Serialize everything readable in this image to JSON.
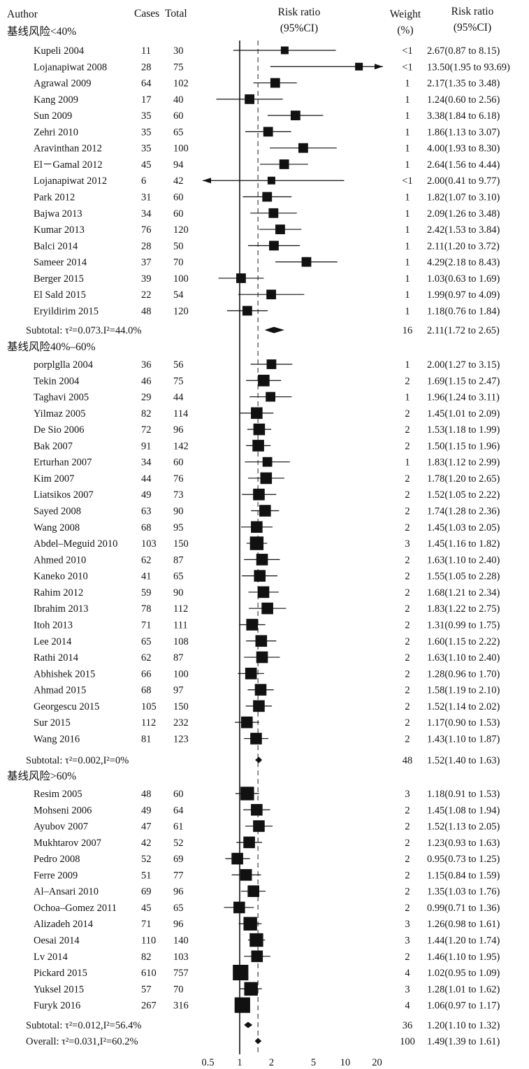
{
  "header": {
    "author": "Author",
    "cases": "Cases",
    "total": "Total",
    "rr_line1": "Risk ratio",
    "rr_line2": "(95%CI)",
    "weight_line1": "Weight",
    "weight_line2": "(%)",
    "rr2_line1": "Risk ratio",
    "rr2_line2": "(95%CI)"
  },
  "chart_data": {
    "type": "forest",
    "scale": "log",
    "x_ticks": [
      "0.5",
      "1",
      "2",
      "5",
      "10",
      "20"
    ],
    "x_tick_values": [
      0.5,
      1,
      2,
      5,
      10,
      20
    ],
    "null_line": 1,
    "overall_reference": 1.49,
    "groups": [
      {
        "label": "基线风险<40%",
        "studies": [
          {
            "author": "Kupeli 2004",
            "cases": "11",
            "total": "30",
            "weight": "<1",
            "rr_text": "2.67(0.87 to 8.15)",
            "rr": 2.67,
            "lo": 0.87,
            "hi": 8.15
          },
          {
            "author": "Lojanapiwat 2008",
            "cases": "28",
            "total": "75",
            "weight": "<1",
            "rr_text": "13.50(1.95 to 93.69)",
            "rr": 13.5,
            "lo": 1.95,
            "hi": 93.69
          },
          {
            "author": "Agrawal 2009",
            "cases": "64",
            "total": "102",
            "weight": "1",
            "rr_text": "2.17(1.35 to 3.48)",
            "rr": 2.17,
            "lo": 1.35,
            "hi": 3.48
          },
          {
            "author": "Kang 2009",
            "cases": "17",
            "total": "40",
            "weight": "1",
            "rr_text": "1.24(0.60 to 2.56)",
            "rr": 1.24,
            "lo": 0.6,
            "hi": 2.56
          },
          {
            "author": "Sun 2009",
            "cases": "35",
            "total": "60",
            "weight": "1",
            "rr_text": "3.38(1.84 to 6.18)",
            "rr": 3.38,
            "lo": 1.84,
            "hi": 6.18
          },
          {
            "author": "Zehri 2010",
            "cases": "35",
            "total": "65",
            "weight": "1",
            "rr_text": "1.86(1.13 to 3.07)",
            "rr": 1.86,
            "lo": 1.13,
            "hi": 3.07
          },
          {
            "author": "Aravinthan 2012",
            "cases": "35",
            "total": "100",
            "weight": "1",
            "rr_text": "4.00(1.93 to 8.30)",
            "rr": 4.0,
            "lo": 1.93,
            "hi": 8.3
          },
          {
            "author": "El－Gamal 2012",
            "cases": "45",
            "total": "94",
            "weight": "1",
            "rr_text": "2.64(1.56 to 4.44)",
            "rr": 2.64,
            "lo": 1.56,
            "hi": 4.44
          },
          {
            "author": "Lojanapiwat 2012",
            "cases": "6",
            "total": "42",
            "weight": "<1",
            "rr_text": "2.00(0.41 to 9.77)",
            "rr": 2.0,
            "lo": 0.41,
            "hi": 9.77
          },
          {
            "author": "Park 2012",
            "cases": "31",
            "total": "60",
            "weight": "1",
            "rr_text": "1.82(1.07 to 3.10)",
            "rr": 1.82,
            "lo": 1.07,
            "hi": 3.1
          },
          {
            "author": "Bajwa 2013",
            "cases": "34",
            "total": "60",
            "weight": "1",
            "rr_text": "2.09(1.26 to 3.48)",
            "rr": 2.09,
            "lo": 1.26,
            "hi": 3.48
          },
          {
            "author": "Kumar 2013",
            "cases": "76",
            "total": "120",
            "weight": "1",
            "rr_text": "2.42(1.53 to 3.84)",
            "rr": 2.42,
            "lo": 1.53,
            "hi": 3.84
          },
          {
            "author": "Balci 2014",
            "cases": "28",
            "total": "50",
            "weight": "1",
            "rr_text": "2.11(1.20 to 3.72)",
            "rr": 2.11,
            "lo": 1.2,
            "hi": 3.72
          },
          {
            "author": "Sameer 2014",
            "cases": "37",
            "total": "70",
            "weight": "1",
            "rr_text": "4.29(2.18 to 8.43)",
            "rr": 4.29,
            "lo": 2.18,
            "hi": 8.43
          },
          {
            "author": "Berger 2015",
            "cases": "39",
            "total": "100",
            "weight": "1",
            "rr_text": "1.03(0.63 to 1.69)",
            "rr": 1.03,
            "lo": 0.63,
            "hi": 1.69
          },
          {
            "author": "El Sald 2015",
            "cases": "22",
            "total": "54",
            "weight": "1",
            "rr_text": "1.99(0.97 to 4.09)",
            "rr": 1.99,
            "lo": 0.97,
            "hi": 4.09
          },
          {
            "author": "Eryildirim 2015",
            "cases": "48",
            "total": "120",
            "weight": "1",
            "rr_text": "1.18(0.76 to 1.84)",
            "rr": 1.18,
            "lo": 0.76,
            "hi": 1.84
          }
        ],
        "subtotal": {
          "label": "Subtotal: τ²=0.073.I²=44.0%",
          "weight": "16",
          "rr_text": "2.11(1.72 to 2.65)",
          "rr": 2.11,
          "lo": 1.72,
          "hi": 2.65
        }
      },
      {
        "label": "基线风险40%–60%",
        "studies": [
          {
            "author": "porplglla 2004",
            "cases": "36",
            "total": "56",
            "weight": "1",
            "rr_text": "2.00(1.27 to 3.15)",
            "rr": 2.0,
            "lo": 1.27,
            "hi": 3.15
          },
          {
            "author": "Tekin 2004",
            "cases": "46",
            "total": "75",
            "weight": "2",
            "rr_text": "1.69(1.15 to 2.47)",
            "rr": 1.69,
            "lo": 1.15,
            "hi": 2.47
          },
          {
            "author": "Taghavi 2005",
            "cases": "29",
            "total": "44",
            "weight": "1",
            "rr_text": "1.96(1.24 to 3.11)",
            "rr": 1.96,
            "lo": 1.24,
            "hi": 3.11
          },
          {
            "author": "Yilmaz 2005",
            "cases": "82",
            "total": "114",
            "weight": "2",
            "rr_text": "1.45(1.01 to 2.09)",
            "rr": 1.45,
            "lo": 1.01,
            "hi": 2.09
          },
          {
            "author": "De Sio 2006",
            "cases": "72",
            "total": "96",
            "weight": "2",
            "rr_text": "1.53(1.18 to 1.99)",
            "rr": 1.53,
            "lo": 1.18,
            "hi": 1.99
          },
          {
            "author": "Bak 2007",
            "cases": "91",
            "total": "142",
            "weight": "2",
            "rr_text": "1.50(1.15 to 1.96)",
            "rr": 1.5,
            "lo": 1.15,
            "hi": 1.96
          },
          {
            "author": "Erturhan 2007",
            "cases": "34",
            "total": "60",
            "weight": "1",
            "rr_text": "1.83(1.12 to 2.99)",
            "rr": 1.83,
            "lo": 1.12,
            "hi": 2.99
          },
          {
            "author": "Kim 2007",
            "cases": "44",
            "total": "76",
            "weight": "2",
            "rr_text": "1.78(1.20 to 2.65)",
            "rr": 1.78,
            "lo": 1.2,
            "hi": 2.65
          },
          {
            "author": "Liatsikos 2007",
            "cases": "49",
            "total": "73",
            "weight": "2",
            "rr_text": "1.52(1.05 to 2.22)",
            "rr": 1.52,
            "lo": 1.05,
            "hi": 2.22
          },
          {
            "author": "Sayed 2008",
            "cases": "63",
            "total": "90",
            "weight": "2",
            "rr_text": "1.74(1.28 to 2.36)",
            "rr": 1.74,
            "lo": 1.28,
            "hi": 2.36
          },
          {
            "author": "Wang 2008",
            "cases": "68",
            "total": "95",
            "weight": "2",
            "rr_text": "1.45(1.03 to 2.05)",
            "rr": 1.45,
            "lo": 1.03,
            "hi": 2.05
          },
          {
            "author": "Abdel–Meguid 2010",
            "cases": "103",
            "total": "150",
            "weight": "3",
            "rr_text": "1.45(1.16 to 1.82)",
            "rr": 1.45,
            "lo": 1.16,
            "hi": 1.82
          },
          {
            "author": "Ahmed 2010",
            "cases": "62",
            "total": "87",
            "weight": "2",
            "rr_text": "1.63(1.10 to 2.40)",
            "rr": 1.63,
            "lo": 1.1,
            "hi": 2.4
          },
          {
            "author": "Kaneko 2010",
            "cases": "41",
            "total": "65",
            "weight": "2",
            "rr_text": "1.55(1.05 to 2.28)",
            "rr": 1.55,
            "lo": 1.05,
            "hi": 2.28
          },
          {
            "author": "Rahim 2012",
            "cases": "59",
            "total": "90",
            "weight": "2",
            "rr_text": "1.68(1.21 to 2.34)",
            "rr": 1.68,
            "lo": 1.21,
            "hi": 2.34
          },
          {
            "author": "Ibrahim 2013",
            "cases": "78",
            "total": "112",
            "weight": "2",
            "rr_text": "1.83(1.22 to 2.75)",
            "rr": 1.83,
            "lo": 1.22,
            "hi": 2.75
          },
          {
            "author": "Itoh 2013",
            "cases": "71",
            "total": "111",
            "weight": "2",
            "rr_text": "1.31(0.99 to 1.75)",
            "rr": 1.31,
            "lo": 0.99,
            "hi": 1.75
          },
          {
            "author": "Lee 2014",
            "cases": "65",
            "total": "108",
            "weight": "2",
            "rr_text": "1.60(1.15 to 2.22)",
            "rr": 1.6,
            "lo": 1.15,
            "hi": 2.22
          },
          {
            "author": "Rathi 2014",
            "cases": "62",
            "total": "87",
            "weight": "2",
            "rr_text": "1.63(1.10 to 2.40)",
            "rr": 1.63,
            "lo": 1.1,
            "hi": 2.4
          },
          {
            "author": "Abhishek 2015",
            "cases": "66",
            "total": "100",
            "weight": "2",
            "rr_text": "1.28(0.96 to 1.70)",
            "rr": 1.28,
            "lo": 0.96,
            "hi": 1.7
          },
          {
            "author": "Ahmad 2015",
            "cases": "68",
            "total": "97",
            "weight": "2",
            "rr_text": "1.58(1.19 to 2.10)",
            "rr": 1.58,
            "lo": 1.19,
            "hi": 2.1
          },
          {
            "author": "Georgescu 2015",
            "cases": "105",
            "total": "150",
            "weight": "2",
            "rr_text": "1.52(1.14 to 2.02)",
            "rr": 1.52,
            "lo": 1.14,
            "hi": 2.02
          },
          {
            "author": "Sur 2015",
            "cases": "112",
            "total": "232",
            "weight": "2",
            "rr_text": "1.17(0.90 to 1.53)",
            "rr": 1.17,
            "lo": 0.9,
            "hi": 1.53
          },
          {
            "author": "Wang 2016",
            "cases": "81",
            "total": "123",
            "weight": "2",
            "rr_text": "1.43(1.10 to 1.87)",
            "rr": 1.43,
            "lo": 1.1,
            "hi": 1.87
          }
        ],
        "subtotal": {
          "label": "Subtotal: τ²=0.002,I²=0%",
          "weight": "48",
          "rr_text": "1.52(1.40 to 1.63)",
          "rr": 1.52,
          "lo": 1.4,
          "hi": 1.63
        }
      },
      {
        "label": "基线风险>60%",
        "studies": [
          {
            "author": "Resim 2005",
            "cases": "48",
            "total": "60",
            "weight": "3",
            "rr_text": "1.18(0.91 to 1.53)",
            "rr": 1.18,
            "lo": 0.91,
            "hi": 1.53
          },
          {
            "author": "Mohseni 2006",
            "cases": "49",
            "total": "64",
            "weight": "2",
            "rr_text": "1.45(1.08 to 1.94)",
            "rr": 1.45,
            "lo": 1.08,
            "hi": 1.94
          },
          {
            "author": "Ayubov 2007",
            "cases": "47",
            "total": "61",
            "weight": "2",
            "rr_text": "1.52(1.13 to 2.05)",
            "rr": 1.52,
            "lo": 1.13,
            "hi": 2.05
          },
          {
            "author": "Mukhtarov 2007",
            "cases": "42",
            "total": "52",
            "weight": "2",
            "rr_text": "1.23(0.93 to 1.63)",
            "rr": 1.23,
            "lo": 0.93,
            "hi": 1.63
          },
          {
            "author": "Pedro 2008",
            "cases": "52",
            "total": "69",
            "weight": "2",
            "rr_text": "0.95(0.73 to 1.25)",
            "rr": 0.95,
            "lo": 0.73,
            "hi": 1.25
          },
          {
            "author": "Ferre 2009",
            "cases": "51",
            "total": "77",
            "weight": "2",
            "rr_text": "1.15(0.84 to 1.59)",
            "rr": 1.15,
            "lo": 0.84,
            "hi": 1.59
          },
          {
            "author": "Al–Ansari 2010",
            "cases": "69",
            "total": "96",
            "weight": "2",
            "rr_text": "1.35(1.03 to 1.76)",
            "rr": 1.35,
            "lo": 1.03,
            "hi": 1.76
          },
          {
            "author": "Ochoa–Gomez 2011",
            "cases": "45",
            "total": "65",
            "weight": "2",
            "rr_text": "0.99(0.71 to 1.36)",
            "rr": 0.99,
            "lo": 0.71,
            "hi": 1.36
          },
          {
            "author": "Alizadeh 2014",
            "cases": "71",
            "total": "96",
            "weight": "3",
            "rr_text": "1.26(0.98 to 1.61)",
            "rr": 1.26,
            "lo": 0.98,
            "hi": 1.61
          },
          {
            "author": "Oesai 2014",
            "cases": "110",
            "total": "140",
            "weight": "3",
            "rr_text": "1.44(1.20 to 1.74)",
            "rr": 1.44,
            "lo": 1.2,
            "hi": 1.74
          },
          {
            "author": "Lv 2014",
            "cases": "82",
            "total": "103",
            "weight": "2",
            "rr_text": "1.46(1.10 to 1.95)",
            "rr": 1.46,
            "lo": 1.1,
            "hi": 1.95
          },
          {
            "author": "Pickard 2015",
            "cases": "610",
            "total": "757",
            "weight": "4",
            "rr_text": "1.02(0.95 to 1.09)",
            "rr": 1.02,
            "lo": 0.95,
            "hi": 1.09
          },
          {
            "author": "Yuksel 2015",
            "cases": "57",
            "total": "70",
            "weight": "3",
            "rr_text": "1.28(1.01 to 1.62)",
            "rr": 1.28,
            "lo": 1.01,
            "hi": 1.62
          },
          {
            "author": "Furyk 2016",
            "cases": "267",
            "total": "316",
            "weight": "4",
            "rr_text": "1.06(0.97 to 1.17)",
            "rr": 1.06,
            "lo": 0.97,
            "hi": 1.17
          }
        ],
        "subtotal": {
          "label": "Subtotal: τ²=0.012,I²=56.4%",
          "weight": "36",
          "rr_text": "1.20(1.10 to 1.32)",
          "rr": 1.2,
          "lo": 1.1,
          "hi": 1.32
        }
      }
    ],
    "overall": {
      "label": "Overall: τ²=0.031,I²=60.2%",
      "weight": "100",
      "rr_text": "1.49(1.39 to 1.61)",
      "rr": 1.49,
      "lo": 1.39,
      "hi": 1.61
    }
  }
}
